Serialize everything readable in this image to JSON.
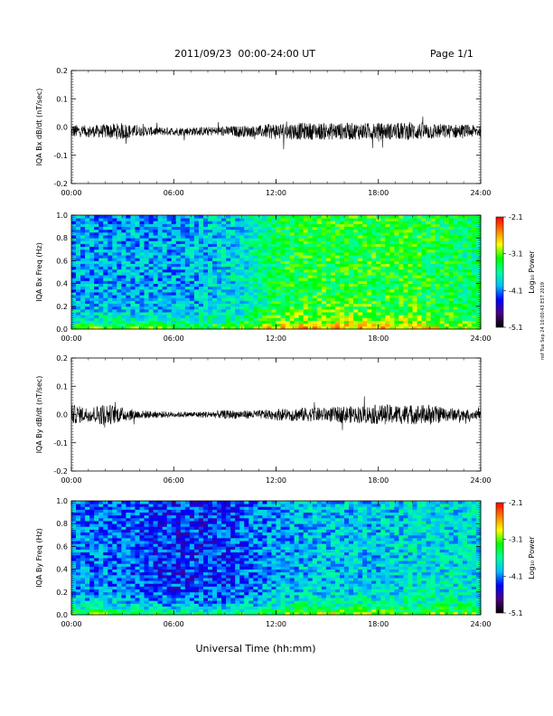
{
  "header": {
    "title": "2011/09/23  00:00-24:00 UT",
    "page": "Page 1/1"
  },
  "side_stamp": "nsf Tue Sep 24 10:00:43 EST 2019",
  "x_axis_label": "Universal Time (hh:mm)",
  "colorbar_label": "Log₁₀ Power",
  "colormap": [
    "#000000",
    "#4b0082",
    "#0000ff",
    "#00bfff",
    "#00ffa0",
    "#00ff00",
    "#ffff00",
    "#ff8000",
    "#ff0000"
  ],
  "chart_data": [
    {
      "type": "line",
      "panel": "bx-waveform",
      "ylabel": "IQA Bx dB/dt (nT/sec)",
      "xlim": [
        0,
        24
      ],
      "ylim": [
        -0.2,
        0.2
      ],
      "xticks": [
        "00:00",
        "06:00",
        "12:00",
        "18:00",
        "24:00"
      ],
      "yticks": [
        "-0.2",
        "-0.1",
        "0.0",
        "0.1",
        "0.2"
      ],
      "series": [
        {
          "x": [
            0,
            1,
            2,
            3,
            4,
            5,
            6,
            7,
            8,
            9,
            10,
            11,
            12,
            13,
            14,
            15,
            16,
            17,
            18,
            19,
            20,
            21,
            22,
            23,
            24
          ],
          "center": [
            -0.015,
            -0.015,
            -0.015,
            -0.015,
            -0.015,
            -0.015,
            -0.015,
            -0.015,
            -0.015,
            -0.015,
            -0.015,
            -0.015,
            -0.015,
            -0.015,
            -0.015,
            -0.015,
            -0.015,
            -0.015,
            -0.015,
            -0.015,
            -0.015,
            -0.015,
            -0.015,
            -0.015,
            -0.015
          ],
          "amplitude": [
            0.025,
            0.02,
            0.025,
            0.03,
            0.018,
            0.015,
            0.015,
            0.015,
            0.016,
            0.018,
            0.02,
            0.02,
            0.03,
            0.03,
            0.03,
            0.03,
            0.03,
            0.03,
            0.03,
            0.03,
            0.032,
            0.03,
            0.025,
            0.025,
            0.02
          ]
        }
      ]
    },
    {
      "type": "heatmap",
      "panel": "bx-spectrogram",
      "ylabel": "IQA Bx Freq (Hz)",
      "xlim": [
        0,
        24
      ],
      "ylim": [
        0,
        1.0
      ],
      "xticks": [
        "00:00",
        "06:00",
        "12:00",
        "18:00",
        "24:00"
      ],
      "yticks": [
        "0.0",
        "0.2",
        "0.4",
        "0.6",
        "0.8",
        "1.0"
      ],
      "colorbar": {
        "min": -5.1,
        "max": -2.1,
        "ticks": [
          "-2.1",
          "-3.1",
          "-4.1",
          "-5.1"
        ]
      },
      "hours": [
        0,
        2,
        4,
        6,
        8,
        10,
        12,
        14,
        16,
        18,
        20,
        22,
        24
      ],
      "low_freq_power": [
        -3.0,
        -3.0,
        -3.0,
        -3.1,
        -3.1,
        -3.0,
        -2.6,
        -2.5,
        -2.5,
        -2.6,
        -2.7,
        -2.8,
        -3.0
      ],
      "high_freq_power": [
        -4.0,
        -4.0,
        -4.0,
        -4.0,
        -3.9,
        -3.8,
        -3.4,
        -3.3,
        -3.3,
        -3.3,
        -3.3,
        -3.4,
        -3.5
      ]
    },
    {
      "type": "line",
      "panel": "by-waveform",
      "ylabel": "IQA By dB/dt (nT/sec)",
      "xlim": [
        0,
        24
      ],
      "ylim": [
        -0.2,
        0.2
      ],
      "xticks": [
        "00:00",
        "06:00",
        "12:00",
        "18:00",
        "24:00"
      ],
      "yticks": [
        "-0.2",
        "-0.1",
        "0.0",
        "0.1",
        "0.2"
      ],
      "series": [
        {
          "x": [
            0,
            1,
            2,
            3,
            4,
            5,
            6,
            7,
            8,
            9,
            10,
            11,
            12,
            13,
            14,
            15,
            16,
            17,
            18,
            19,
            20,
            21,
            22,
            23,
            24
          ],
          "center": [
            0.0,
            0.0,
            0.0,
            0.0,
            0.0,
            0.0,
            0.0,
            0.0,
            0.0,
            0.0,
            0.0,
            0.0,
            0.0,
            0.0,
            0.0,
            0.0,
            0.0,
            0.0,
            0.0,
            0.0,
            0.0,
            0.0,
            0.0,
            0.0,
            0.0
          ],
          "amplitude": [
            0.035,
            0.025,
            0.04,
            0.025,
            0.015,
            0.012,
            0.01,
            0.01,
            0.012,
            0.015,
            0.015,
            0.015,
            0.02,
            0.025,
            0.025,
            0.025,
            0.03,
            0.03,
            0.035,
            0.035,
            0.035,
            0.035,
            0.025,
            0.02,
            0.015
          ]
        }
      ]
    },
    {
      "type": "heatmap",
      "panel": "by-spectrogram",
      "ylabel": "IQA By Freq (Hz)",
      "xlim": [
        0,
        24
      ],
      "ylim": [
        0,
        1.0
      ],
      "xticks": [
        "00:00",
        "06:00",
        "12:00",
        "18:00",
        "24:00"
      ],
      "yticks": [
        "0.0",
        "0.2",
        "0.4",
        "0.6",
        "0.8",
        "1.0"
      ],
      "colorbar": {
        "min": -5.1,
        "max": -2.1,
        "ticks": [
          "-2.1",
          "-3.1",
          "-4.1",
          "-5.1"
        ]
      },
      "hours": [
        0,
        2,
        4,
        6,
        8,
        10,
        12,
        14,
        16,
        18,
        20,
        22,
        24
      ],
      "low_freq_power": [
        -3.1,
        -3.1,
        -3.2,
        -3.3,
        -3.4,
        -3.3,
        -3.1,
        -2.8,
        -2.8,
        -2.9,
        -3.0,
        -3.0,
        -3.2
      ],
      "high_freq_power": [
        -4.1,
        -4.1,
        -4.2,
        -4.3,
        -4.3,
        -4.2,
        -4.0,
        -3.9,
        -3.9,
        -3.9,
        -3.8,
        -3.8,
        -3.8
      ]
    }
  ]
}
